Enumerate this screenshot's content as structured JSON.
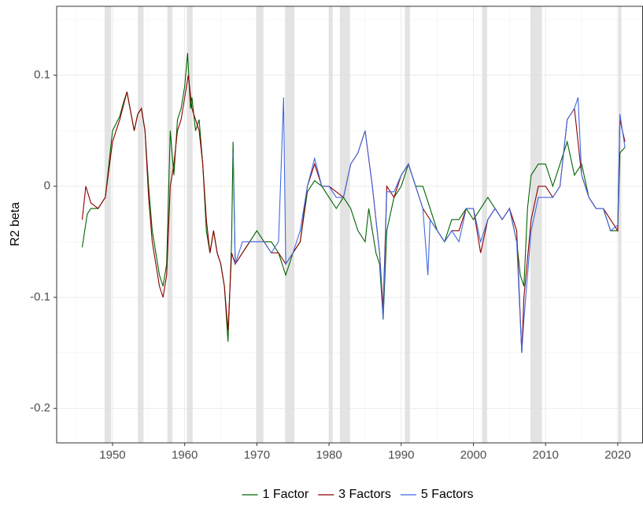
{
  "chart_data": {
    "type": "line",
    "y_label": "R2 beta",
    "xlim": [
      1942.26,
      2023.5
    ],
    "ylim": [
      -0.231,
      0.162
    ],
    "xticks": [
      1950,
      1960,
      1970,
      1980,
      1990,
      2000,
      2010,
      2020
    ],
    "yticks": [
      -0.2,
      -0.1,
      0.0,
      0.1
    ],
    "minor_xticks": [
      1945,
      1955,
      1965,
      1975,
      1985,
      1995,
      2005,
      2015
    ],
    "minor_yticks": [
      -0.15,
      -0.05,
      0.05,
      0.15
    ],
    "grid": true,
    "legend": "bottom",
    "shaded_periods": [
      [
        1948.9,
        1949.8
      ],
      [
        1953.5,
        1954.3
      ],
      [
        1957.6,
        1958.3
      ],
      [
        1960.3,
        1961.1
      ],
      [
        1969.9,
        1970.9
      ],
      [
        1973.9,
        1975.2
      ],
      [
        1980.0,
        1980.5
      ],
      [
        1981.5,
        1982.9
      ],
      [
        1990.5,
        1991.2
      ],
      [
        2001.2,
        2001.9
      ],
      [
        2007.9,
        2009.5
      ],
      [
        2020.1,
        2020.5
      ]
    ],
    "shade_color": "#e0e0e0",
    "series": [
      {
        "name": "1 Factor",
        "color": "#006400",
        "x": [
          1945.8,
          1946.5,
          1947,
          1948,
          1949,
          1949.5,
          1950,
          1951,
          1951.5,
          1952,
          1953,
          1953.5,
          1954,
          1954.5,
          1955,
          1955.5,
          1956,
          1956.5,
          1957,
          1957.5,
          1958,
          1958.5,
          1959,
          1959.5,
          1960,
          1960.4,
          1960.8,
          1961,
          1961.5,
          1962,
          1962.5,
          1963,
          1963.5,
          1964,
          1964.5,
          1965,
          1965.5,
          1966,
          1966.5,
          1966.7,
          1967,
          1968,
          1969,
          1970,
          1971,
          1972,
          1973,
          1974,
          1975,
          1976,
          1977,
          1978,
          1979,
          1980,
          1981,
          1982,
          1983,
          1984,
          1985,
          1985.5,
          1986,
          1986.5,
          1987,
          1987.5,
          1988,
          1989,
          1990,
          1991,
          1992,
          1993,
          1994,
          1995,
          1996,
          1997,
          1998,
          1999,
          2000,
          2001,
          2002,
          2003,
          2004,
          2005,
          2006,
          2006.5,
          2007,
          2007.5,
          2008,
          2009,
          2010,
          2011,
          2012,
          2013,
          2014,
          2015,
          2016,
          2017,
          2018,
          2019,
          2020,
          2020.3,
          2021
        ],
        "values": [
          -0.055,
          -0.025,
          -0.02,
          -0.02,
          -0.01,
          0.02,
          0.05,
          0.063,
          0.075,
          0.085,
          0.05,
          0.065,
          0.07,
          0.05,
          0.0,
          -0.04,
          -0.06,
          -0.08,
          -0.09,
          -0.07,
          0.05,
          0.01,
          0.06,
          0.07,
          0.09,
          0.12,
          0.07,
          0.08,
          0.05,
          0.06,
          0.02,
          -0.04,
          -0.06,
          -0.04,
          -0.06,
          -0.07,
          -0.09,
          -0.14,
          -0.05,
          0.04,
          -0.07,
          -0.06,
          -0.05,
          -0.04,
          -0.05,
          -0.05,
          -0.06,
          -0.08,
          -0.06,
          -0.05,
          -0.005,
          0.005,
          0.0,
          -0.01,
          -0.02,
          -0.01,
          -0.02,
          -0.04,
          -0.05,
          -0.02,
          -0.04,
          -0.06,
          -0.07,
          -0.12,
          -0.04,
          -0.01,
          0.0,
          0.02,
          0.0,
          0.0,
          -0.02,
          -0.04,
          -0.05,
          -0.03,
          -0.03,
          -0.02,
          -0.03,
          -0.02,
          -0.01,
          -0.02,
          -0.03,
          -0.02,
          -0.05,
          -0.08,
          -0.09,
          -0.02,
          0.01,
          0.02,
          0.02,
          0.0,
          0.02,
          0.04,
          0.01,
          0.02,
          -0.01,
          -0.02,
          -0.02,
          -0.04,
          -0.04,
          0.03,
          0.035
        ]
      },
      {
        "name": "3 Factors",
        "color": "#8b0000",
        "x": [
          1945.8,
          1946.3,
          1947,
          1948,
          1949,
          1949.5,
          1950,
          1951,
          1952,
          1953,
          1953.5,
          1954,
          1954.5,
          1955,
          1955.5,
          1956,
          1956.5,
          1957,
          1957.5,
          1958,
          1958.5,
          1959,
          1959.5,
          1960,
          1960.5,
          1961,
          1961.5,
          1962,
          1962.5,
          1963,
          1963.5,
          1964,
          1964.5,
          1965,
          1965.5,
          1966,
          1966.5,
          1967,
          1968,
          1969,
          1970,
          1971,
          1972,
          1973,
          1974,
          1975,
          1976,
          1977,
          1978,
          1979,
          1980,
          1981,
          1982,
          1983,
          1984,
          1985,
          1986,
          1987,
          1987.5,
          1988,
          1989,
          1990,
          1991,
          1992,
          1993,
          1994,
          1995,
          1996,
          1997,
          1998,
          1999,
          2000,
          2001,
          2002,
          2003,
          2004,
          2005,
          2006,
          2006.7,
          2007,
          2008,
          2009,
          2010,
          2011,
          2012,
          2013,
          2014,
          2015,
          2016,
          2017,
          2018,
          2019,
          2020,
          2020.3,
          2021
        ],
        "values": [
          -0.03,
          0.0,
          -0.015,
          -0.02,
          -0.01,
          0.015,
          0.04,
          0.06,
          0.085,
          0.05,
          0.065,
          0.07,
          0.05,
          -0.01,
          -0.05,
          -0.07,
          -0.09,
          -0.1,
          -0.08,
          0.0,
          0.02,
          0.05,
          0.06,
          0.08,
          0.1,
          0.07,
          0.06,
          0.05,
          0.02,
          -0.03,
          -0.06,
          -0.04,
          -0.06,
          -0.07,
          -0.09,
          -0.13,
          -0.06,
          -0.07,
          -0.06,
          -0.05,
          -0.05,
          -0.05,
          -0.06,
          -0.06,
          -0.07,
          -0.06,
          -0.05,
          0.0,
          0.02,
          0.0,
          0.0,
          -0.005,
          -0.01,
          0.02,
          0.03,
          0.05,
          0.0,
          -0.06,
          -0.11,
          0.0,
          -0.01,
          0.01,
          0.02,
          0.0,
          -0.02,
          -0.03,
          -0.04,
          -0.05,
          -0.04,
          -0.04,
          -0.02,
          -0.02,
          -0.06,
          -0.03,
          -0.02,
          -0.03,
          -0.02,
          -0.04,
          -0.15,
          -0.1,
          -0.03,
          0.0,
          0.0,
          -0.01,
          0.0,
          0.06,
          0.07,
          0.01,
          -0.01,
          -0.02,
          -0.02,
          -0.03,
          -0.04,
          0.06,
          0.04
        ]
      },
      {
        "name": "5 Factors",
        "color": "#4169e1",
        "x": [
          1966.7,
          1967,
          1968,
          1969,
          1970,
          1971,
          1972,
          1973,
          1973.7,
          1974,
          1975,
          1976,
          1977,
          1978,
          1979,
          1980,
          1981,
          1982,
          1983,
          1984,
          1985,
          1986,
          1987,
          1987.5,
          1988,
          1989,
          1990,
          1991,
          1992,
          1993,
          1993.7,
          1994,
          1995,
          1996,
          1997,
          1998,
          1999,
          2000,
          2001,
          2002,
          2003,
          2004,
          2005,
          2006,
          2006.7,
          2007,
          2008,
          2009,
          2010,
          2011,
          2012,
          2013,
          2014,
          2014.5,
          2015,
          2016,
          2017,
          2018,
          2019,
          2020,
          2020.3,
          2021
        ],
        "values": [
          0.03,
          -0.07,
          -0.05,
          -0.05,
          -0.05,
          -0.05,
          -0.06,
          -0.05,
          0.08,
          -0.07,
          -0.06,
          -0.04,
          0.0,
          0.025,
          0.0,
          0.0,
          -0.01,
          -0.01,
          0.02,
          0.03,
          0.05,
          0.0,
          -0.06,
          -0.12,
          -0.005,
          -0.005,
          0.01,
          0.02,
          0.0,
          -0.02,
          -0.08,
          -0.03,
          -0.04,
          -0.05,
          -0.04,
          -0.05,
          -0.02,
          -0.02,
          -0.05,
          -0.03,
          -0.02,
          -0.03,
          -0.02,
          -0.05,
          -0.15,
          -0.12,
          -0.04,
          -0.01,
          -0.01,
          -0.01,
          0.0,
          0.06,
          0.07,
          0.08,
          0.01,
          -0.01,
          -0.02,
          -0.02,
          -0.04,
          -0.035,
          0.065,
          0.035
        ]
      }
    ]
  }
}
